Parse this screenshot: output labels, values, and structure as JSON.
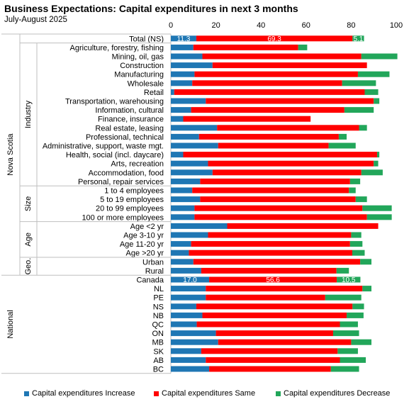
{
  "colors": {
    "increase": "#1f77b4",
    "same": "#ff0000",
    "decrease": "#22a65a"
  },
  "chart_data": {
    "type": "bar",
    "orientation": "horizontal",
    "stacked": true,
    "title": "Business Expectations: Capital expenditures in next 3 months",
    "subtitle": "July-August 2025",
    "xlim": [
      0,
      100
    ],
    "xticks": [
      "0",
      "20",
      "40",
      "60",
      "80",
      "100"
    ],
    "legend_position": "bottom",
    "series_names": [
      "Capital expenditures Increase",
      "Capital expenditures Same",
      "Capital expenditures Decrease"
    ],
    "rows": [
      {
        "label": "Total (NS)",
        "group": "Nova Scotia",
        "sub": "",
        "values": [
          11.3,
          69.3,
          5.1
        ],
        "labels": [
          "11.3",
          "69.3",
          "5.1"
        ]
      },
      {
        "label": "Agriculture, forestry, fishing",
        "group": "Nova Scotia",
        "sub": "Industry",
        "values": [
          10,
          46.5,
          4
        ]
      },
      {
        "label": "Mining, oil, gas",
        "group": "Nova Scotia",
        "sub": "Industry",
        "values": [
          14,
          70.5,
          16
        ]
      },
      {
        "label": "Construction",
        "group": "Nova Scotia",
        "sub": "Industry",
        "values": [
          18.5,
          68.5,
          0
        ]
      },
      {
        "label": "Manufacturing",
        "group": "Nova Scotia",
        "sub": "Industry",
        "values": [
          10.5,
          72.5,
          14
        ]
      },
      {
        "label": "Wholesale",
        "group": "Nova Scotia",
        "sub": "Industry",
        "values": [
          9.5,
          66.5,
          15
        ]
      },
      {
        "label": "Retail",
        "group": "Nova Scotia",
        "sub": "Industry",
        "values": [
          1.5,
          84.5,
          6
        ]
      },
      {
        "label": "Transportation, warehousing",
        "group": "Nova Scotia",
        "sub": "Industry",
        "values": [
          15.5,
          74.5,
          2.5
        ]
      },
      {
        "label": "Information, cultural",
        "group": "Nova Scotia",
        "sub": "Industry",
        "values": [
          9,
          68,
          13
        ]
      },
      {
        "label": "Finance, insurance",
        "group": "Nova Scotia",
        "sub": "Industry",
        "values": [
          5.5,
          56.5,
          0
        ]
      },
      {
        "label": "Real estate, leasing",
        "group": "Nova Scotia",
        "sub": "Industry",
        "values": [
          20.5,
          63,
          3.5
        ]
      },
      {
        "label": "Professional, technical",
        "group": "Nova Scotia",
        "sub": "Industry",
        "values": [
          12.5,
          62,
          3.5
        ]
      },
      {
        "label": "Administrative, support, waste mgt.",
        "group": "Nova Scotia",
        "sub": "Industry",
        "values": [
          21,
          49,
          12
        ]
      },
      {
        "label": "Health, social (incl. daycare)",
        "group": "Nova Scotia",
        "sub": "Industry",
        "values": [
          5.5,
          86,
          1
        ]
      },
      {
        "label": "Arts, recreation",
        "group": "Nova Scotia",
        "sub": "Industry",
        "values": [
          16.5,
          73.5,
          2
        ]
      },
      {
        "label": "Accommodation, food",
        "group": "Nova Scotia",
        "sub": "Industry",
        "values": [
          18.5,
          66,
          9.5
        ]
      },
      {
        "label": "Personal, repair services",
        "group": "Nova Scotia",
        "sub": "Industry",
        "values": [
          13,
          66.5,
          4.5
        ]
      },
      {
        "label": "1 to 4 employees",
        "group": "Nova Scotia",
        "sub": "Size",
        "values": [
          9.5,
          69.5,
          3
        ]
      },
      {
        "label": "5 to 19 employees",
        "group": "Nova Scotia",
        "sub": "Size",
        "values": [
          13,
          69,
          5
        ]
      },
      {
        "label": "20 to 99 employees",
        "group": "Nova Scotia",
        "sub": "Size",
        "values": [
          10.5,
          74.5,
          13
        ]
      },
      {
        "label": "100 or more employees",
        "group": "Nova Scotia",
        "sub": "Size",
        "values": [
          10.5,
          76.5,
          11
        ]
      },
      {
        "label": "Age <2 yr",
        "group": "Nova Scotia",
        "sub": "Age",
        "values": [
          25,
          67,
          0
        ]
      },
      {
        "label": "Age 3-10 yr",
        "group": "Nova Scotia",
        "sub": "Age",
        "values": [
          16.5,
          63.5,
          4.5
        ]
      },
      {
        "label": "Age 11-20 yr",
        "group": "Nova Scotia",
        "sub": "Age",
        "values": [
          9,
          70.5,
          5.5
        ]
      },
      {
        "label": "Age >20 yr",
        "group": "Nova Scotia",
        "sub": "Age",
        "values": [
          8,
          72.5,
          5.5
        ]
      },
      {
        "label": "Urban",
        "group": "Nova Scotia",
        "sub": "Geo.",
        "values": [
          10,
          74,
          5
        ]
      },
      {
        "label": "Rural",
        "group": "Nova Scotia",
        "sub": "Geo.",
        "values": [
          13.5,
          60,
          5.5
        ]
      },
      {
        "label": "Canada",
        "group": "National",
        "sub": "",
        "values": [
          17.0,
          56.6,
          10.5
        ],
        "labels": [
          "17.0",
          "56.6",
          "10.5"
        ]
      },
      {
        "label": "NL",
        "group": "National",
        "sub": "",
        "values": [
          15.5,
          69.5,
          4
        ]
      },
      {
        "label": "PE",
        "group": "National",
        "sub": "",
        "values": [
          15.5,
          53,
          16
        ]
      },
      {
        "label": "NS",
        "group": "National",
        "sub": "",
        "values": [
          11.3,
          69.3,
          5.1
        ]
      },
      {
        "label": "NB",
        "group": "National",
        "sub": "",
        "values": [
          14,
          64,
          7.5
        ]
      },
      {
        "label": "QC",
        "group": "National",
        "sub": "",
        "values": [
          11.5,
          63.5,
          8
        ]
      },
      {
        "label": "ON",
        "group": "National",
        "sub": "",
        "values": [
          20,
          52,
          11.5
        ]
      },
      {
        "label": "MB",
        "group": "National",
        "sub": "",
        "values": [
          21,
          59,
          9
        ]
      },
      {
        "label": "SK",
        "group": "National",
        "sub": "",
        "values": [
          13.5,
          60.5,
          9
        ]
      },
      {
        "label": "AB",
        "group": "National",
        "sub": "",
        "values": [
          15.5,
          59.5,
          11.5
        ]
      },
      {
        "label": "BC",
        "group": "National",
        "sub": "",
        "values": [
          17,
          54,
          12.5
        ]
      }
    ],
    "group_labels": [
      "Nova Scotia",
      "National"
    ],
    "sub_labels": [
      "Industry",
      "Size",
      "Age",
      "Geo."
    ]
  }
}
